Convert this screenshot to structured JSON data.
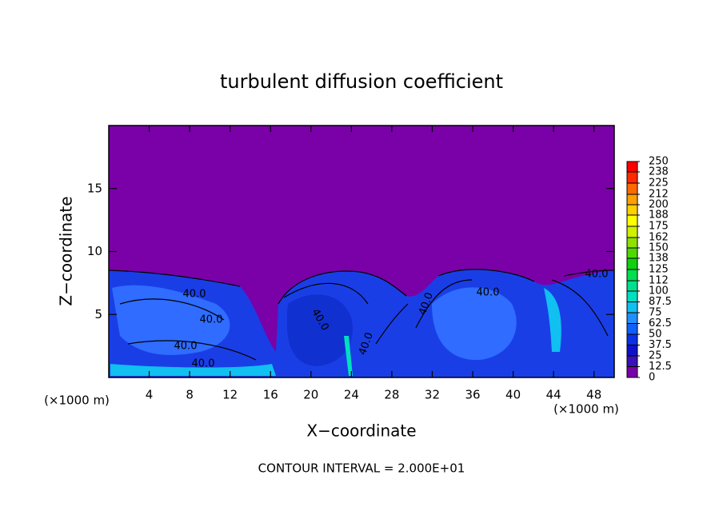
{
  "chart_data": {
    "type": "contour",
    "title": "turbulent diffusion coefficient",
    "x_label": "X−coordinate",
    "y_label": "Z−coordinate",
    "unit_labels": [
      "(×1000 m)",
      "(×1000 m)"
    ],
    "footnote": "CONTOUR INTERVAL = 2.000E+01",
    "xlim": [
      0,
      50
    ],
    "xticks": [
      4,
      8,
      12,
      16,
      20,
      24,
      28,
      32,
      36,
      40,
      44,
      48
    ],
    "ylim": [
      0,
      20
    ],
    "yticks": [
      5,
      10,
      15
    ],
    "contour_labels": [
      "40.0",
      "40.0",
      "40.0",
      "40.0",
      "40.0",
      "40.0",
      "40.0",
      "40.0",
      "40.0"
    ],
    "colorbar": {
      "lim": [
        0,
        250
      ],
      "levels": [
        0,
        12.5,
        25,
        37.5,
        50,
        62.5,
        75,
        87.5,
        100,
        112,
        125,
        138,
        150,
        162,
        175,
        188,
        200,
        212,
        225,
        238,
        250
      ],
      "colors": [
        "#7a00a8",
        "#3a10b8",
        "#1010c8",
        "#0a30e8",
        "#1060ff",
        "#2090ff",
        "#10c0f0",
        "#00e0c0",
        "#00e090",
        "#00e050",
        "#10d010",
        "#50d800",
        "#90e000",
        "#d0f000",
        "#ffff00",
        "#ffd000",
        "#ffa000",
        "#ff6a00",
        "#ff2a00",
        "#ff0000",
        "#f08080"
      ]
    }
  }
}
